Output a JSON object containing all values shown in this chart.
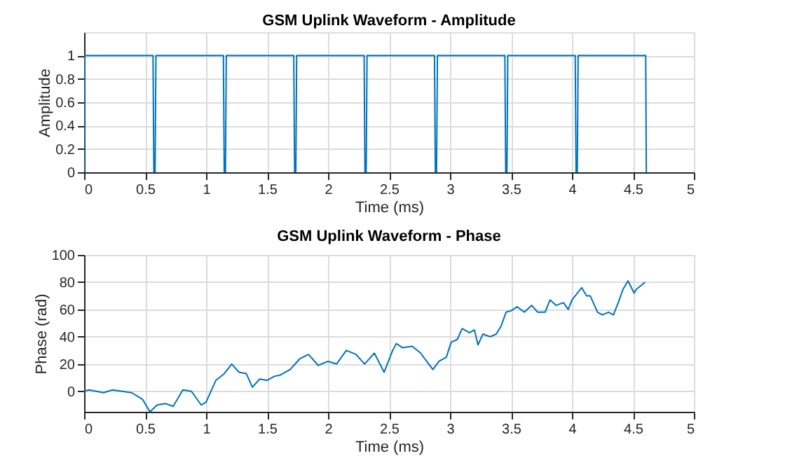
{
  "chart_data": [
    {
      "type": "line",
      "title": "GSM Uplink Waveform - Amplitude",
      "xlabel": "Time (ms)",
      "ylabel": "Amplitude",
      "grid": true,
      "xlim": [
        0,
        5
      ],
      "xticks": [
        0,
        0.5,
        1,
        1.5,
        2,
        2.5,
        3,
        3.5,
        4,
        4.5,
        5
      ],
      "ylim": [
        0,
        1.2
      ],
      "yticks": [
        0,
        0.2,
        0.4,
        0.6,
        0.8,
        1
      ],
      "series": [
        {
          "color": "#0072bd",
          "x": [
            0,
            0.004,
            0.565,
            0.572,
            0.582,
            0.589,
            1.142,
            1.149,
            1.159,
            1.166,
            1.719,
            1.726,
            1.736,
            1.743,
            2.296,
            2.303,
            2.313,
            2.32,
            2.873,
            2.88,
            2.89,
            2.897,
            3.45,
            3.457,
            3.467,
            3.474,
            4.027,
            4.034,
            4.044,
            4.051,
            4.605,
            4.61
          ],
          "values": [
            0,
            1,
            1,
            0,
            0,
            1,
            1,
            0,
            0,
            1,
            1,
            0,
            0,
            1,
            1,
            0,
            0,
            1,
            1,
            0,
            0,
            1,
            1,
            0,
            0,
            1,
            1,
            0,
            0,
            1,
            1,
            0
          ]
        }
      ]
    },
    {
      "type": "line",
      "title": "GSM Uplink Waveform - Phase",
      "xlabel": "Time (ms)",
      "ylabel": "Phase (rad)",
      "grid": true,
      "xlim": [
        0,
        5
      ],
      "xticks": [
        0,
        0.5,
        1,
        1.5,
        2,
        2.5,
        3,
        3.5,
        4,
        4.5,
        5
      ],
      "ylim": [
        -15,
        100
      ],
      "yticks": [
        0,
        20,
        40,
        60,
        80,
        100
      ],
      "series": [
        {
          "color": "#0072bd",
          "x": [
            0,
            0.04,
            0.16,
            0.23,
            0.31,
            0.39,
            0.48,
            0.54,
            0.6,
            0.67,
            0.73,
            0.81,
            0.88,
            0.96,
            1.0,
            1.08,
            1.15,
            1.21,
            1.27,
            1.33,
            1.38,
            1.44,
            1.5,
            1.56,
            1.61,
            1.69,
            1.77,
            1.84,
            1.92,
            2.0,
            2.07,
            2.15,
            2.23,
            2.3,
            2.38,
            2.46,
            2.53,
            2.56,
            2.61,
            2.69,
            2.76,
            2.8,
            2.86,
            2.91,
            2.97,
            3.01,
            3.06,
            3.1,
            3.16,
            3.2,
            3.23,
            3.27,
            3.33,
            3.38,
            3.42,
            3.46,
            3.5,
            3.55,
            3.61,
            3.67,
            3.72,
            3.78,
            3.82,
            3.87,
            3.93,
            3.97,
            4.0,
            4.08,
            4.12,
            4.15,
            4.21,
            4.25,
            4.3,
            4.34,
            4.38,
            4.42,
            4.46,
            4.51,
            4.53,
            4.6
          ],
          "values": [
            0,
            1,
            -1,
            1,
            0,
            -1,
            -6,
            -15,
            -10,
            -9,
            -11,
            1,
            0,
            -10,
            -8,
            8,
            13,
            20,
            14,
            13,
            3,
            9,
            8,
            11,
            12,
            16,
            24,
            27,
            19,
            22,
            20,
            30,
            27,
            20,
            28,
            14,
            30,
            35,
            32,
            33,
            28,
            23,
            16,
            22,
            25,
            36,
            38,
            46,
            43,
            45,
            34,
            42,
            40,
            42,
            48,
            58,
            59,
            62,
            58,
            63,
            58,
            58,
            67,
            63,
            65,
            60,
            67,
            76,
            70,
            70,
            58,
            56,
            58,
            56,
            65,
            75,
            81,
            72,
            75,
            80
          ]
        }
      ]
    }
  ]
}
